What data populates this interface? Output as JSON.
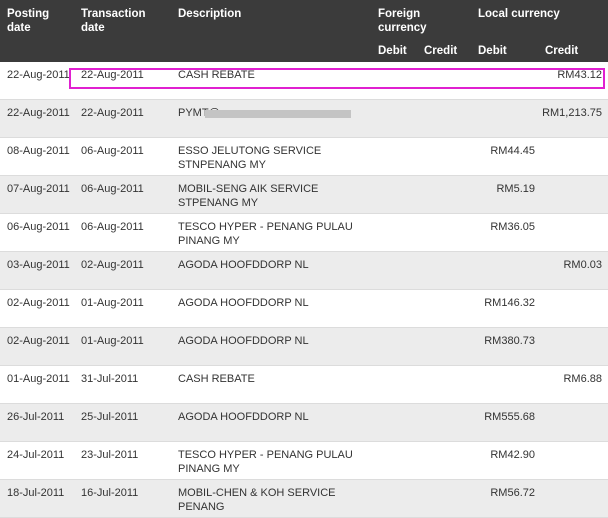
{
  "header": {
    "posting_date": "Posting date",
    "transaction_date": "Transaction date",
    "description": "Description",
    "foreign_currency": "Foreign currency",
    "local_currency": "Local currency",
    "foreign_debit": "Debit",
    "foreign_credit": "Credit",
    "local_debit": "Debit",
    "local_credit": "Credit"
  },
  "rows": [
    {
      "posting": "22-Aug-2011",
      "transaction": "22-Aug-2011",
      "description": "CASH REBATE",
      "local_debit": "",
      "local_credit": "RM43.12"
    },
    {
      "posting": "22-Aug-2011",
      "transaction": "22-Aug-2011",
      "description": "PYMT@",
      "local_debit": "",
      "local_credit": "RM1,213.75"
    },
    {
      "posting": "08-Aug-2011",
      "transaction": "06-Aug-2011",
      "description": "ESSO JELUTONG SERVICE STNPENANG MY",
      "local_debit": "RM44.45",
      "local_credit": ""
    },
    {
      "posting": "07-Aug-2011",
      "transaction": "06-Aug-2011",
      "description": "MOBIL-SENG AIK SERVICE STPENANG MY",
      "local_debit": "RM5.19",
      "local_credit": ""
    },
    {
      "posting": "06-Aug-2011",
      "transaction": "06-Aug-2011",
      "description": "TESCO HYPER - PENANG PULAU PINANG MY",
      "local_debit": "RM36.05",
      "local_credit": ""
    },
    {
      "posting": "03-Aug-2011",
      "transaction": "02-Aug-2011",
      "description": "AGODA HOOFDDORP NL",
      "local_debit": "",
      "local_credit": "RM0.03"
    },
    {
      "posting": "02-Aug-2011",
      "transaction": "01-Aug-2011",
      "description": "AGODA HOOFDDORP NL",
      "local_debit": "RM146.32",
      "local_credit": ""
    },
    {
      "posting": "02-Aug-2011",
      "transaction": "01-Aug-2011",
      "description": "AGODA HOOFDDORP NL",
      "local_debit": "RM380.73",
      "local_credit": ""
    },
    {
      "posting": "01-Aug-2011",
      "transaction": "31-Jul-2011",
      "description": "CASH REBATE",
      "local_debit": "",
      "local_credit": "RM6.88"
    },
    {
      "posting": "26-Jul-2011",
      "transaction": "25-Jul-2011",
      "description": "AGODA HOOFDDORP NL",
      "local_debit": "RM555.68",
      "local_credit": ""
    },
    {
      "posting": "24-Jul-2011",
      "transaction": "23-Jul-2011",
      "description": "TESCO HYPER - PENANG PULAU PINANG MY",
      "local_debit": "RM42.90",
      "local_credit": ""
    },
    {
      "posting": "18-Jul-2011",
      "transaction": "16-Jul-2011",
      "description": "MOBIL-CHEN & KOH SERVICE PENANG",
      "local_debit": "RM56.72",
      "local_credit": ""
    }
  ]
}
